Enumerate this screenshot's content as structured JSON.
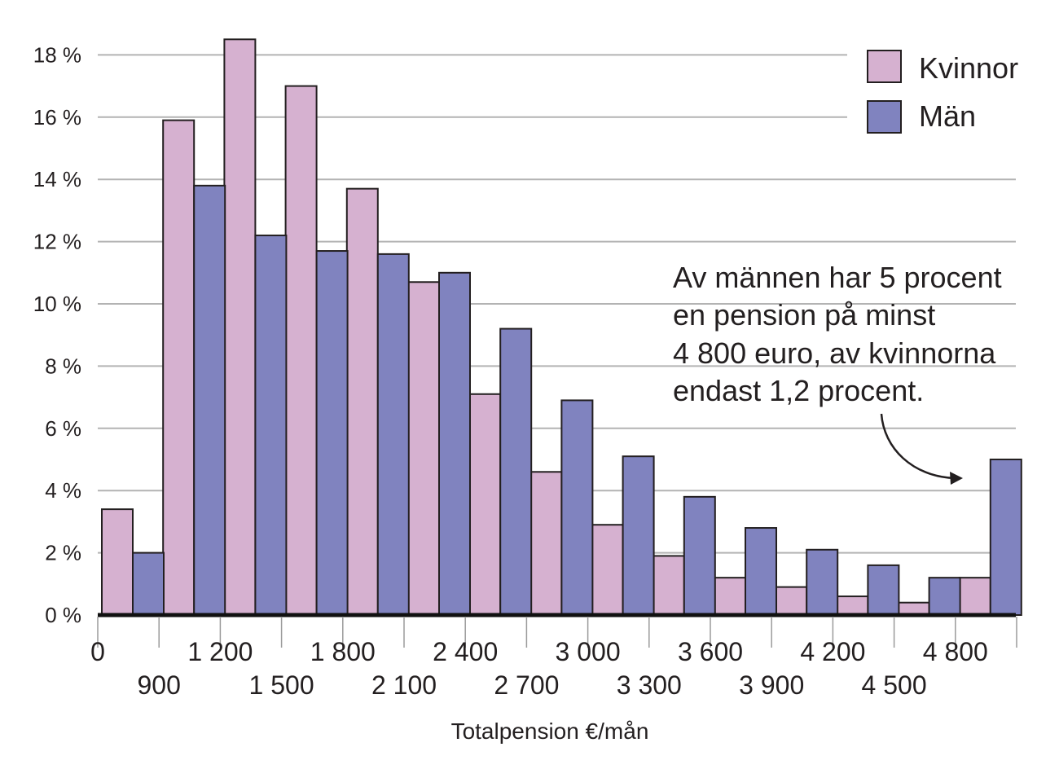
{
  "chart_data": {
    "type": "bar",
    "xlabel": "Totalpension €/mån",
    "ylabel": "",
    "ylim": [
      0,
      18
    ],
    "yticks": [
      "0 %",
      "2 %",
      "4 %",
      "6 %",
      "8 %",
      "10 %",
      "12 %",
      "14 %",
      "16 %",
      "18 %"
    ],
    "xticks_top": [
      "0",
      "1 200",
      "1 800",
      "2 400",
      "3 000",
      "3 600",
      "4 200",
      "4 800"
    ],
    "xticks_bottom": [
      "900",
      "1 500",
      "2 100",
      "2 700",
      "3 300",
      "3 900",
      "4 500"
    ],
    "bins": 15,
    "series": [
      {
        "name": "Kvinnor",
        "color": "#d6b1d0",
        "values": [
          3.4,
          15.9,
          18.5,
          17.0,
          13.7,
          10.7,
          7.1,
          4.6,
          2.9,
          1.9,
          1.2,
          0.9,
          0.6,
          0.4,
          1.2
        ]
      },
      {
        "name": "Män",
        "color": "#8083bf",
        "values": [
          2.0,
          13.8,
          12.2,
          11.7,
          11.6,
          11.0,
          9.2,
          6.9,
          5.1,
          3.8,
          2.8,
          2.1,
          1.6,
          1.2,
          5.0
        ]
      }
    ],
    "grid": true,
    "legend": "top-right",
    "annotation": [
      "Av männen har 5 procent",
      "en pension på minst",
      "4 800 euro, av kvinnorna",
      "endast 1,2 procent."
    ]
  }
}
